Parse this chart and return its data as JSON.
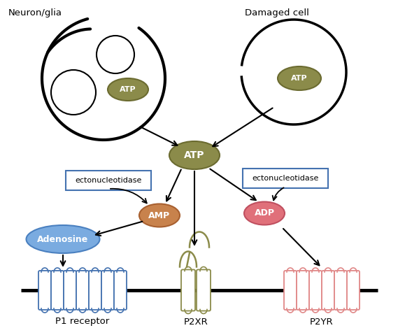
{
  "neuron_glia_label": "Neuron/glia",
  "damaged_cell_label": "Damaged cell",
  "atp_label": "ATP",
  "amp_label": "AMP",
  "adp_label": "ADP",
  "adenosine_label": "Adenosine",
  "ectonucleotidase_label": "ectonucleotidase",
  "p1_label": "P1 receptor",
  "p2xr_label": "P2XR",
  "p2yr_label": "P2YR",
  "atp_fill": "#8b8b4a",
  "atp_edge": "#6b6b30",
  "amp_fill": "#c8824c",
  "amp_edge": "#a86030",
  "adp_fill": "#e0707a",
  "adp_edge": "#c05060",
  "adenosine_fill": "#7aabe0",
  "adenosine_edge": "#4a80c0",
  "p1_color": "#4472b0",
  "p2xr_color": "#8b8b4a",
  "p2yr_color": "#e08888",
  "ectobox_edge": "#4472b0",
  "background": "#ffffff"
}
